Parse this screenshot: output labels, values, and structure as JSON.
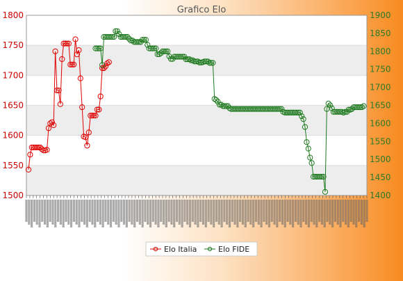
{
  "chart_data": {
    "type": "line",
    "title": "Grafico Elo",
    "grid": true,
    "legend_position": "bottom-center",
    "left_axis": {
      "ylim": [
        1500,
        1800
      ],
      "ticks": [
        1500,
        1550,
        1600,
        1650,
        1700,
        1750,
        1800
      ],
      "color": "#cc0000"
    },
    "right_axis": {
      "ylim": [
        1400,
        1900
      ],
      "ticks": [
        1400,
        1450,
        1500,
        1550,
        1600,
        1650,
        1700,
        1750,
        1800,
        1850,
        1900
      ],
      "color": "#2a7a2a"
    },
    "colors": {
      "series_italia": "#e00000",
      "series_fide": "#1f7a1f",
      "grid_band": "#ededed"
    },
    "series": [
      {
        "name": "Elo Italia",
        "axis": "left",
        "values": [
          1543,
          1568,
          1580,
          1580,
          1580,
          1580,
          1580,
          1580,
          1577,
          1575,
          1575,
          1576,
          1612,
          1620,
          1622,
          1617,
          1740,
          1675,
          1675,
          1652,
          1727,
          1753,
          1753,
          1753,
          1753,
          1718,
          1718,
          1718,
          1760,
          1735,
          1742,
          1695,
          1647,
          1598,
          1597,
          1583,
          1605,
          1633,
          1633,
          1633,
          1633,
          1643,
          1643,
          1665,
          1712,
          1712,
          1715,
          1720,
          1722
        ]
      },
      {
        "name": "Elo FIDE",
        "axis": "right",
        "values": [
          1808,
          1808,
          1808,
          1808,
          1762,
          1840,
          1840,
          1840,
          1840,
          1840,
          1840,
          1840,
          1856,
          1856,
          1848,
          1840,
          1840,
          1840,
          1840,
          1840,
          1835,
          1830,
          1830,
          1826,
          1826,
          1826,
          1826,
          1826,
          1832,
          1832,
          1832,
          1818,
          1808,
          1808,
          1808,
          1808,
          1808,
          1792,
          1792,
          1795,
          1800,
          1800,
          1800,
          1800,
          1786,
          1779,
          1779,
          1785,
          1785,
          1785,
          1785,
          1785,
          1785,
          1785,
          1778,
          1778,
          1778,
          1775,
          1775,
          1772,
          1772,
          1772,
          1769,
          1769,
          1770,
          1772,
          1772,
          1772,
          1768,
          1768,
          1768,
          1668,
          1665,
          1660,
          1652,
          1652,
          1648,
          1648,
          1648,
          1648,
          1642,
          1640,
          1640,
          1640,
          1640,
          1640,
          1640,
          1640,
          1640,
          1640,
          1640,
          1640,
          1640,
          1640,
          1640,
          1640,
          1640,
          1640,
          1640,
          1640,
          1640,
          1640,
          1640,
          1640,
          1640,
          1640,
          1640,
          1640,
          1640,
          1640,
          1640,
          1640,
          1632,
          1630,
          1630,
          1630,
          1630,
          1630,
          1630,
          1630,
          1630,
          1630,
          1630,
          1620,
          1612,
          1590,
          1548,
          1530,
          1505,
          1490,
          1452,
          1452,
          1452,
          1452,
          1452,
          1452,
          1452,
          1410,
          1640,
          1655,
          1650,
          1642,
          1632,
          1632,
          1632,
          1632,
          1632,
          1632,
          1630,
          1632,
          1632,
          1638,
          1638,
          1640,
          1645,
          1645,
          1645,
          1645,
          1645,
          1645,
          1648
        ]
      }
    ]
  }
}
